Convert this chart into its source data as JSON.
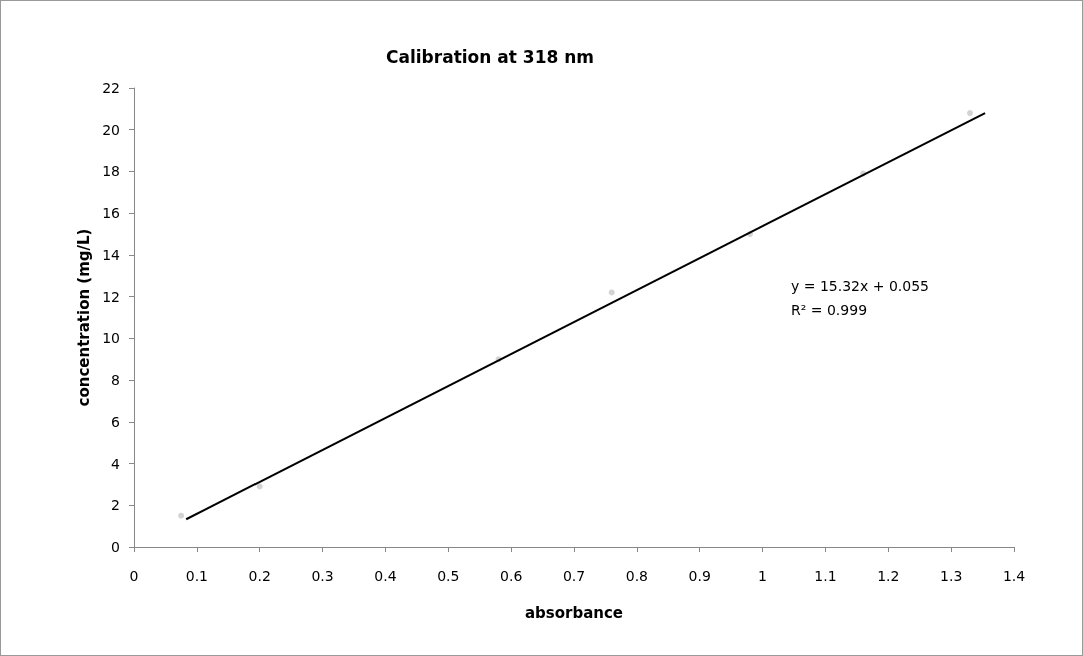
{
  "chart_data": {
    "type": "scatter",
    "title": "Calibration at 318 nm",
    "xlabel": "absorbance",
    "ylabel": "concentration (mg/L)",
    "xlim": [
      0,
      1.4
    ],
    "xticks": [
      0,
      0.1,
      0.2,
      0.3,
      0.4,
      0.5,
      0.6,
      0.7,
      0.8,
      0.9,
      1,
      1.1,
      1.2,
      1.3,
      1.4
    ],
    "ylim": [
      0,
      22
    ],
    "yticks": [
      0,
      2,
      4,
      6,
      8,
      10,
      12,
      14,
      16,
      18,
      20,
      22
    ],
    "grid": false,
    "marker": "circle",
    "series": [
      {
        "color": "#c8c8c8",
        "x": [
          0.075,
          0.2,
          0.58,
          0.76,
          0.98,
          1.16,
          1.33
        ],
        "values": [
          1.5,
          2.9,
          9,
          12.2,
          15,
          17.9,
          20.8
        ]
      },
      {
        "type": "line",
        "color": "#000000",
        "marker": "none",
        "x": [
          0.083,
          1.354
        ],
        "values": [
          1.33,
          20.8
        ]
      }
    ],
    "annotations": [
      "y = 15.32x + 0.055",
      "R² = 0.999"
    ]
  }
}
